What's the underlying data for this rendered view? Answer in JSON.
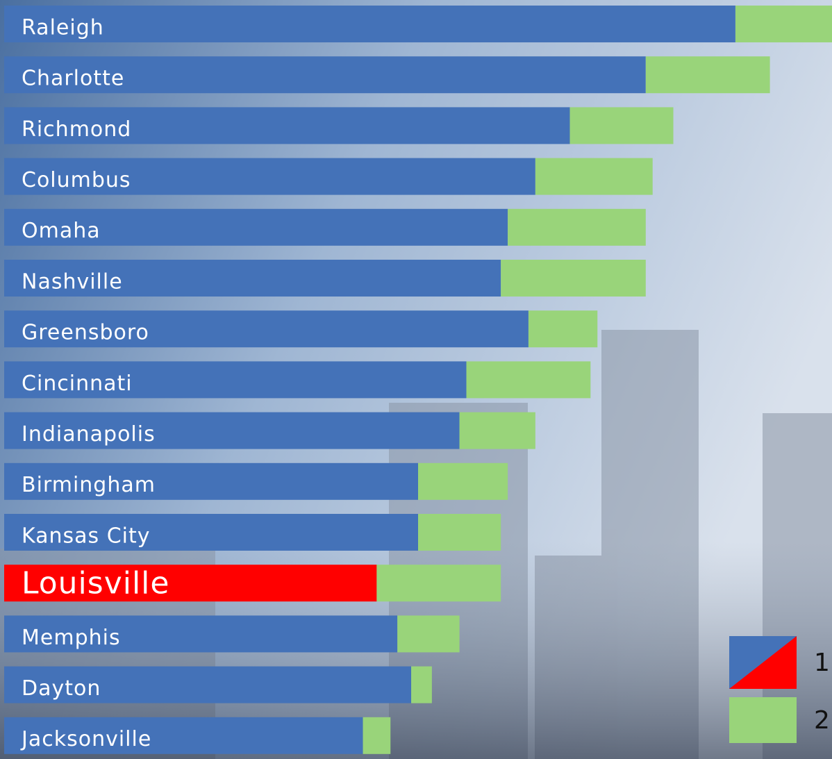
{
  "chart_data": {
    "type": "stacked-bar",
    "orientation": "horizontal",
    "categories": [
      "Raleigh",
      "Charlotte",
      "Richmond",
      "Columbus",
      "Omaha",
      "Nashville",
      "Greensboro",
      "Cincinnati",
      "Indianapolis",
      "Birmingham",
      "Kansas City",
      "Louisville",
      "Memphis",
      "Dayton",
      "Jacksonville"
    ],
    "series": [
      {
        "name": "1",
        "color": "#4472b8",
        "values": [
          106,
          93,
          82,
          77,
          73,
          72,
          76,
          67,
          66,
          60,
          60,
          54,
          57,
          59,
          52
        ]
      },
      {
        "name": "2",
        "color": "#99d47a",
        "values": [
          14,
          18,
          15,
          17,
          20,
          21,
          10,
          18,
          11,
          13,
          12,
          18,
          9,
          3,
          4
        ]
      }
    ],
    "highlight_index": 11,
    "highlight_color": "#ff0000",
    "xlim": [
      0,
      120
    ],
    "legend": "bottom-right"
  }
}
